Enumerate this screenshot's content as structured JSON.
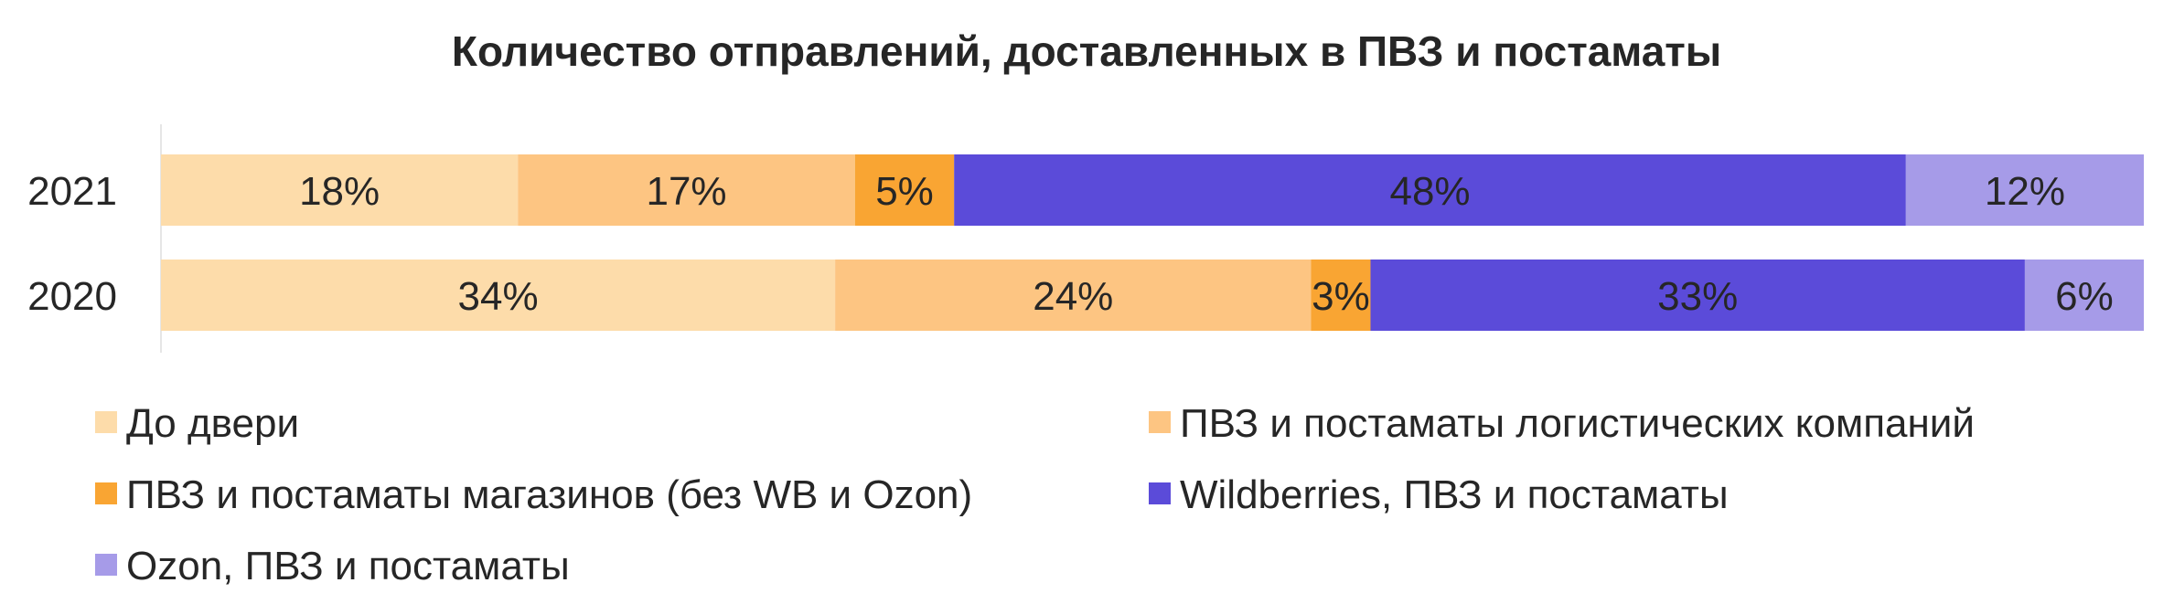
{
  "chart_data": {
    "type": "bar",
    "orientation": "horizontal",
    "stacked": true,
    "percent_stacked": true,
    "title": "Количество отправлений, доставленных в ПВЗ и постаматы",
    "categories": [
      "2021",
      "2020"
    ],
    "xlim": [
      0,
      100
    ],
    "grid": false,
    "legend_position": "bottom",
    "series": [
      {
        "name": "До двери",
        "color": "#FDDCAA",
        "values": [
          18,
          34
        ],
        "labels": [
          "18%",
          "34%"
        ]
      },
      {
        "name": "ПВЗ и постаматы логистических компаний",
        "color": "#FDC582",
        "values": [
          17,
          24
        ],
        "labels": [
          "17%",
          "24%"
        ]
      },
      {
        "name": "ПВЗ и постаматы магазинов (без WB и Ozon)",
        "color": "#F9A533",
        "values": [
          5,
          3
        ],
        "labels": [
          "5%",
          "3%"
        ]
      },
      {
        "name": "Wildberries, ПВЗ и постаматы",
        "color": "#5B4BD9",
        "values": [
          48,
          33
        ],
        "labels": [
          "48%",
          "33%"
        ]
      },
      {
        "name": "Ozon, ПВЗ и постаматы",
        "color": "#A69BE8",
        "values": [
          12,
          6
        ],
        "labels": [
          "12%",
          "6%"
        ]
      }
    ]
  }
}
